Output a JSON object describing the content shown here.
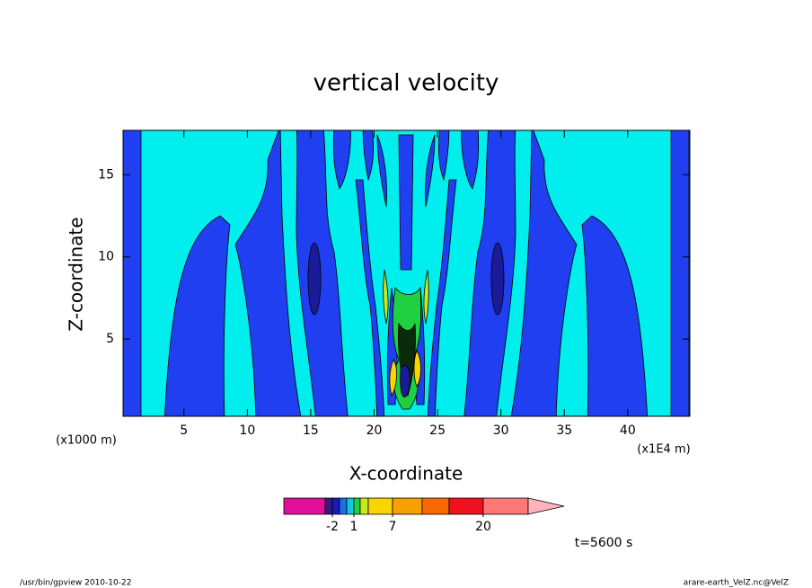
{
  "chart_data": {
    "type": "contour",
    "title": "vertical velocity",
    "x_label": "X-coordinate",
    "y_label": "Z-coordinate",
    "xlim": [
      0.2,
      44.9
    ],
    "ylim": [
      0.3,
      17.7
    ],
    "xticks": [
      5,
      10,
      15,
      20,
      25,
      30,
      35,
      40
    ],
    "yticks": [
      5,
      10,
      15
    ],
    "annotations": [
      "(x1000 m)",
      "(x1E4 m)",
      "t=5600 s"
    ],
    "footer": [
      "/usr/bin/gpview   2010-10-22",
      "arare-earth_VelZ.nc@VelZ"
    ],
    "colorbar": {
      "colors": [
        "#e0109a",
        "#3a1880",
        "#1a1ab8",
        "#1a70e8",
        "#10c8d8",
        "#20d040",
        "#c8e820",
        "#f8d400",
        "#f8a000",
        "#f86a00",
        "#f01020",
        "#ff7878"
      ],
      "extend_color": "#ffb4bc",
      "levels": [
        null,
        -2,
        null,
        null,
        1,
        null,
        null,
        7,
        null,
        null,
        20
      ]
    }
  }
}
